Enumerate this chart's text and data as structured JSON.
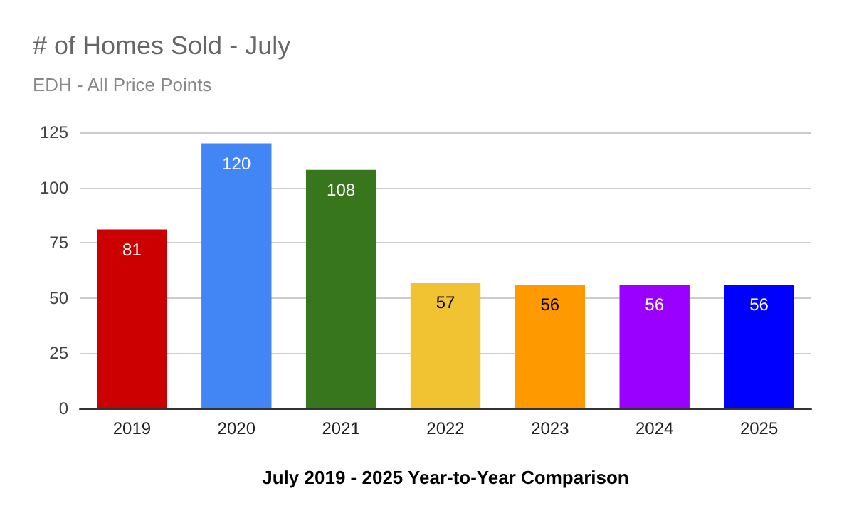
{
  "chart_data": {
    "type": "bar",
    "title": "# of Homes Sold - July",
    "subtitle": "EDH - All Price Points",
    "xlabel": "July 2019 - 2025 Year-to-Year Comparison",
    "categories": [
      "2019",
      "2020",
      "2021",
      "2022",
      "2023",
      "2024",
      "2025"
    ],
    "values": [
      81,
      120,
      108,
      57,
      56,
      56,
      56
    ],
    "colors": [
      "#cc0000",
      "#4285f4",
      "#38761d",
      "#f1c232",
      "#ff9900",
      "#9900ff",
      "#0000ff"
    ],
    "ylim": [
      0,
      125
    ],
    "yticks": [
      0,
      25,
      50,
      75,
      100,
      125
    ],
    "grid": "y",
    "data_labels": true
  }
}
